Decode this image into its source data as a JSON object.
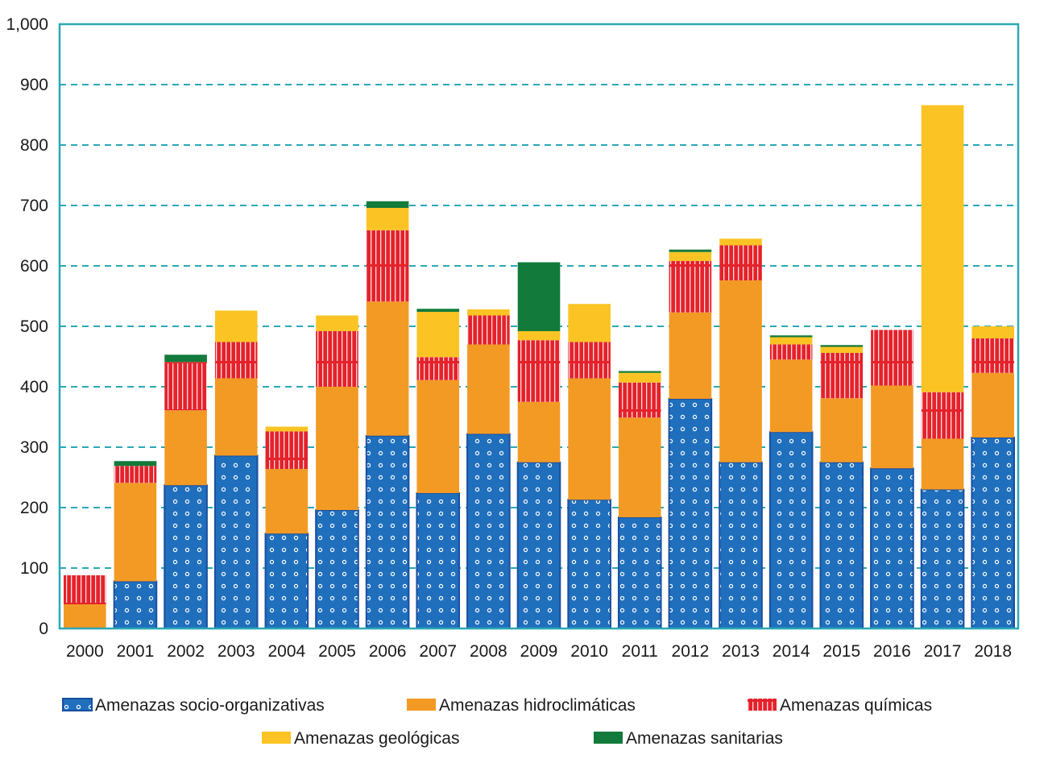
{
  "chart_data": {
    "type": "bar",
    "stacked": true,
    "categories": [
      "2000",
      "2001",
      "2002",
      "2003",
      "2004",
      "2005",
      "2006",
      "2007",
      "2008",
      "2009",
      "2010",
      "2011",
      "2012",
      "2013",
      "2014",
      "2015",
      "2016",
      "2017",
      "2018"
    ],
    "series": [
      {
        "name": "Amenazas socio-organizativas",
        "color": "#1f6fbd",
        "pattern": "dots",
        "values": [
          0,
          78,
          237,
          286,
          157,
          196,
          319,
          224,
          322,
          275,
          213,
          184,
          380,
          275,
          325,
          275,
          265,
          230,
          316
        ]
      },
      {
        "name": "Amenazas hidroclimáticas",
        "color": "#f39a24",
        "pattern": "solid",
        "values": [
          40,
          163,
          124,
          128,
          107,
          204,
          222,
          187,
          148,
          100,
          201,
          165,
          143,
          301,
          120,
          106,
          137,
          84,
          107
        ]
      },
      {
        "name": "Amenazas químicas",
        "color": "#e4222b",
        "pattern": "stripes",
        "values": [
          48,
          28,
          80,
          60,
          62,
          92,
          118,
          38,
          48,
          102,
          60,
          58,
          85,
          58,
          25,
          75,
          92,
          77,
          57
        ]
      },
      {
        "name": "Amenazas geológicas",
        "color": "#fbc424",
        "pattern": "solid",
        "values": [
          0,
          0,
          0,
          52,
          8,
          26,
          37,
          75,
          10,
          15,
          63,
          16,
          15,
          11,
          12,
          10,
          0,
          475,
          20
        ]
      },
      {
        "name": "Amenazas sanitarias",
        "color": "#127a3b",
        "pattern": "solid",
        "values": [
          0,
          8,
          12,
          0,
          0,
          0,
          11,
          5,
          0,
          114,
          0,
          3,
          4,
          0,
          3,
          3,
          0,
          0,
          0
        ]
      }
    ],
    "y_ticks": [
      "0",
      "100",
      "200",
      "300",
      "400",
      "500",
      "600",
      "700",
      "800",
      "900",
      "1,000"
    ],
    "ylim": [
      0,
      1000
    ],
    "grid": "horizontal dashed",
    "legend": "bottom",
    "frame_color": "#2aa8b6",
    "title": "",
    "xlabel": "",
    "ylabel": ""
  }
}
